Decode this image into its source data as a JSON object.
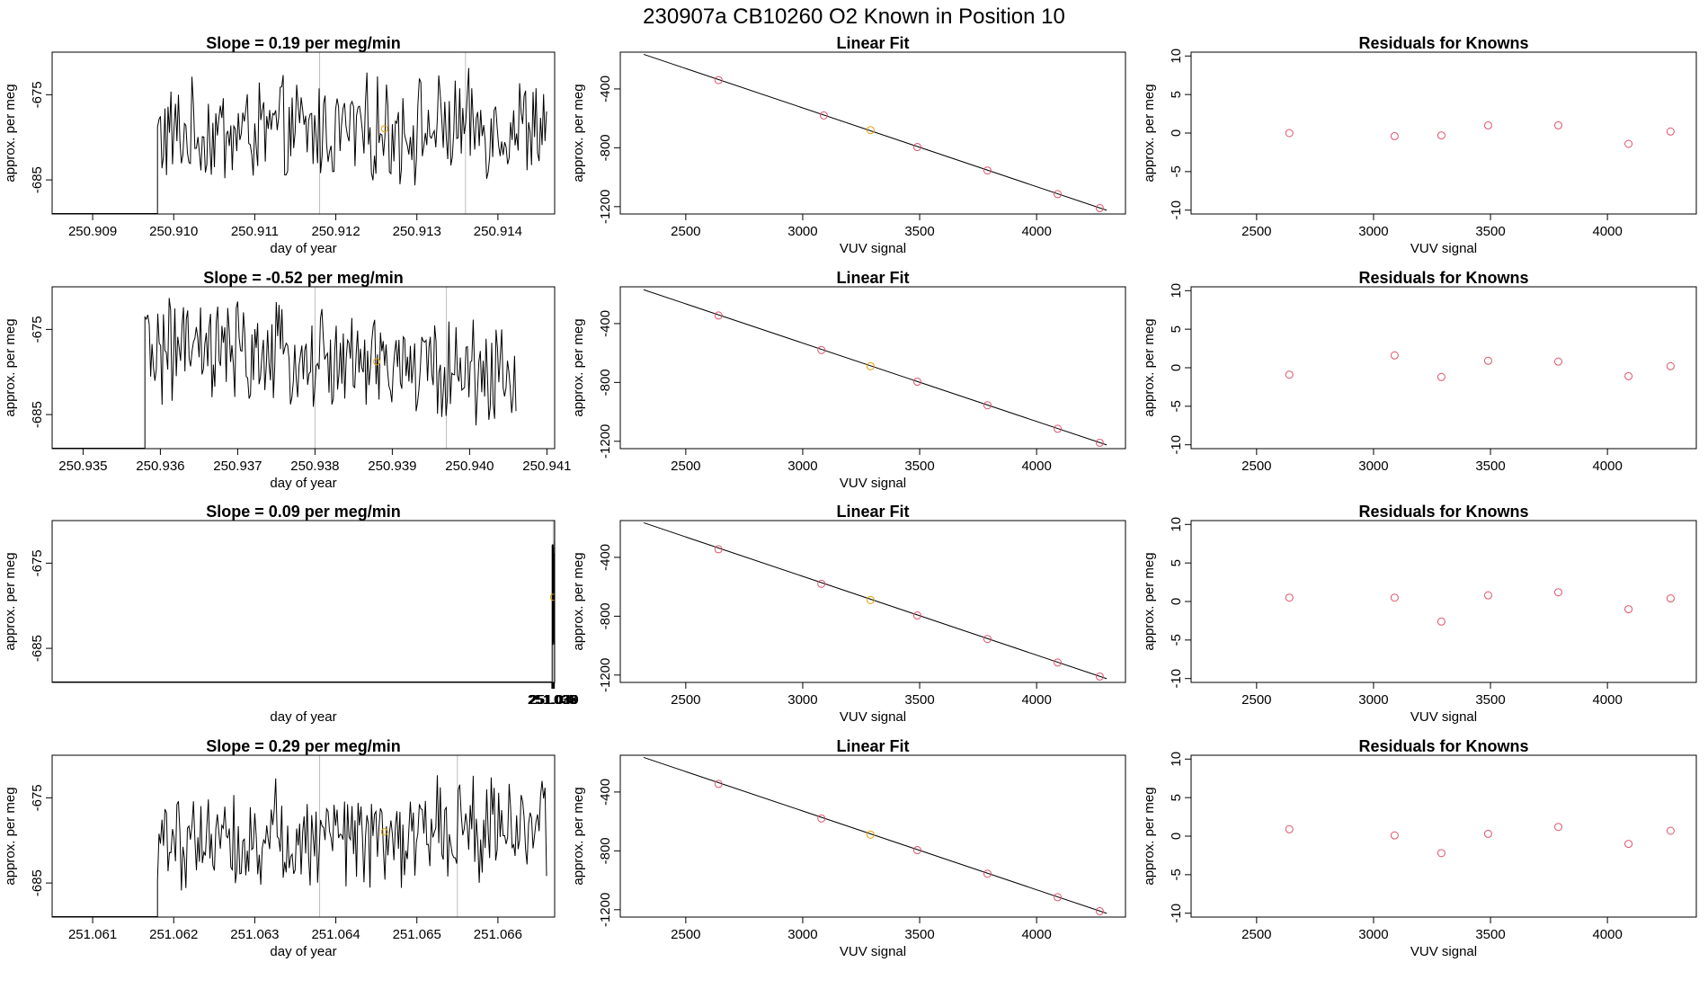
{
  "page_title": "230907a      CB10260    O2 Known in Position  10",
  "chart_data": [
    {
      "type": "line",
      "row": 0,
      "title": "Slope =  0.19  per meg/min",
      "xlabel": "day of year",
      "ylabel": "approx. per meg",
      "xlim": [
        250.9085,
        250.9147
      ],
      "ylim": [
        -689,
        -670
      ],
      "xticks": [
        250.909,
        250.91,
        250.911,
        250.912,
        250.913,
        250.914
      ],
      "xtick_labels": [
        "250.909",
        "250.910",
        "250.911",
        "250.912",
        "250.913",
        "250.914"
      ],
      "yticks": [
        -675,
        -685
      ],
      "ytick_labels": [
        "-675",
        "-685"
      ],
      "vlines": [
        250.9118,
        250.9136
      ],
      "signal_start": 250.9098,
      "signal_end": 250.9146,
      "signal_mean": -679.2,
      "signal_trend": 0.19,
      "marker": {
        "x": 250.9126,
        "y": -679.0,
        "color": "#e69f00"
      }
    },
    {
      "type": "scatter",
      "row": 0,
      "title": "Linear Fit",
      "xlabel": "VUV signal",
      "ylabel": "approx. per meg",
      "xlim": [
        2220,
        4380
      ],
      "ylim": [
        -1250,
        -150
      ],
      "xticks": [
        2500,
        3000,
        3500,
        4000
      ],
      "xtick_labels": [
        "2500",
        "3000",
        "3500",
        "4000"
      ],
      "yticks": [
        -400,
        -800,
        -1200
      ],
      "ytick_labels": [
        "-400",
        "-800",
        "-1200"
      ],
      "fit_line": {
        "x": [
          2320,
          4300
        ],
        "y": [
          -165,
          -1225
        ]
      },
      "points": [
        {
          "x": 2640,
          "y": -340,
          "color": "#df536b"
        },
        {
          "x": 3090,
          "y": -580,
          "color": "#df536b"
        },
        {
          "x": 3290,
          "y": -680,
          "color": "#e69f00"
        },
        {
          "x": 3490,
          "y": -795,
          "color": "#df536b"
        },
        {
          "x": 3790,
          "y": -955,
          "color": "#df536b"
        },
        {
          "x": 4090,
          "y": -1115,
          "color": "#df536b"
        },
        {
          "x": 4270,
          "y": -1210,
          "color": "#df536b"
        }
      ]
    },
    {
      "type": "scatter",
      "row": 0,
      "title": "Residuals for Knowns",
      "xlabel": "VUV signal",
      "ylabel": "approx. per meg",
      "xlim": [
        2220,
        4380
      ],
      "ylim": [
        -10.5,
        10.5
      ],
      "xticks": [
        2500,
        3000,
        3500,
        4000
      ],
      "xtick_labels": [
        "2500",
        "3000",
        "3500",
        "4000"
      ],
      "yticks": [
        10,
        5,
        0,
        -5,
        -10
      ],
      "ytick_labels": [
        "10",
        "5",
        "0",
        "-5",
        "-10"
      ],
      "points": [
        {
          "x": 2640,
          "y": 0.0
        },
        {
          "x": 3090,
          "y": -0.4
        },
        {
          "x": 3290,
          "y": -0.3
        },
        {
          "x": 3490,
          "y": 1.0
        },
        {
          "x": 3790,
          "y": 1.0
        },
        {
          "x": 4090,
          "y": -1.4
        },
        {
          "x": 4270,
          "y": 0.2
        }
      ]
    },
    {
      "type": "line",
      "row": 1,
      "title": "Slope =  -0.52  per meg/min",
      "xlabel": "day of year",
      "ylabel": "approx. per meg",
      "xlim": [
        250.9346,
        250.9411
      ],
      "ylim": [
        -689,
        -670
      ],
      "xticks": [
        250.935,
        250.936,
        250.937,
        250.938,
        250.939,
        250.94,
        250.941
      ],
      "xtick_labels": [
        "250.935",
        "250.936",
        "250.937",
        "250.938",
        "250.939",
        "250.940",
        "250.941"
      ],
      "yticks": [
        -675,
        -685
      ],
      "ytick_labels": [
        "-675",
        "-685"
      ],
      "vlines": [
        250.938,
        250.9397
      ],
      "signal_start": 250.9358,
      "signal_end": 250.9406,
      "signal_mean": -678.8,
      "signal_trend": -0.52,
      "marker": {
        "x": 250.9388,
        "y": -678.8,
        "color": "#e69f00"
      }
    },
    {
      "type": "scatter",
      "row": 1,
      "title": "Linear Fit",
      "xlabel": "VUV signal",
      "ylabel": "approx. per meg",
      "xlim": [
        2220,
        4380
      ],
      "ylim": [
        -1250,
        -150
      ],
      "xticks": [
        2500,
        3000,
        3500,
        4000
      ],
      "xtick_labels": [
        "2500",
        "3000",
        "3500",
        "4000"
      ],
      "yticks": [
        -400,
        -800,
        -1200
      ],
      "ytick_labels": [
        "-400",
        "-800",
        "-1200"
      ],
      "fit_line": {
        "x": [
          2320,
          4300
        ],
        "y": [
          -170,
          -1225
        ]
      },
      "points": [
        {
          "x": 2640,
          "y": -345,
          "color": "#df536b"
        },
        {
          "x": 3080,
          "y": -580,
          "color": "#df536b"
        },
        {
          "x": 3290,
          "y": -690,
          "color": "#e69f00"
        },
        {
          "x": 3490,
          "y": -795,
          "color": "#df536b"
        },
        {
          "x": 3790,
          "y": -955,
          "color": "#df536b"
        },
        {
          "x": 4090,
          "y": -1115,
          "color": "#df536b"
        },
        {
          "x": 4270,
          "y": -1210,
          "color": "#df536b"
        }
      ]
    },
    {
      "type": "scatter",
      "row": 1,
      "title": "Residuals for Knowns",
      "xlabel": "",
      "ylabel": "approx. per meg",
      "xlim": [
        2220,
        4380
      ],
      "ylim": [
        -10.5,
        10.5
      ],
      "xticks": [
        2500,
        3000,
        3500,
        4000
      ],
      "xtick_labels": [
        "2500",
        "3000",
        "3500",
        "4000"
      ],
      "yticks": [
        10,
        5,
        0,
        -5,
        -10
      ],
      "ytick_labels": [
        "10",
        "5",
        "0",
        "-5",
        "-10"
      ],
      "points": [
        {
          "x": 2640,
          "y": -0.9
        },
        {
          "x": 3090,
          "y": 1.6
        },
        {
          "x": 3290,
          "y": -1.2
        },
        {
          "x": 3490,
          "y": 0.9
        },
        {
          "x": 3790,
          "y": 0.8
        },
        {
          "x": 4090,
          "y": -1.1
        },
        {
          "x": 4270,
          "y": 0.2
        }
      ]
    },
    {
      "type": "line",
      "row": 2,
      "title": "Slope =  0.09  per meg/min",
      "xlabel": "day of year",
      "ylabel": "approx. per meg",
      "xlim": [
        250.0345,
        251.0406
      ],
      "ylim": [
        -689,
        -670
      ],
      "xticks": [
        251.035,
        251.036,
        251.037,
        251.038,
        251.039,
        251.04
      ],
      "xtick_labels": [
        "251.035",
        "251.036",
        "251.037",
        "251.038",
        "251.039",
        "251.040"
      ],
      "yticks": [
        -675,
        -685
      ],
      "ytick_labels": [
        "-675",
        "-685"
      ],
      "vlines": [
        251.0376,
        251.0394
      ],
      "signal_start": 251.0355,
      "signal_end": 251.0405,
      "signal_mean": -679.0,
      "signal_trend": 0.09,
      "marker": {
        "x": 251.0385,
        "y": -679.0,
        "color": "#e69f00"
      }
    },
    {
      "type": "scatter",
      "row": 2,
      "title": "Linear Fit",
      "xlabel": "VUV signal",
      "ylabel": "approx. per meg",
      "xlim": [
        2220,
        4380
      ],
      "ylim": [
        -1250,
        -150
      ],
      "xticks": [
        2500,
        3000,
        3500,
        4000
      ],
      "xtick_labels": [
        "2500",
        "3000",
        "3500",
        "4000"
      ],
      "yticks": [
        -400,
        -800,
        -1200
      ],
      "ytick_labels": [
        "-400",
        "-800",
        "-1200"
      ],
      "fit_line": {
        "x": [
          2320,
          4300
        ],
        "y": [
          -165,
          -1225
        ]
      },
      "points": [
        {
          "x": 2640,
          "y": -345,
          "color": "#df536b"
        },
        {
          "x": 3080,
          "y": -580,
          "color": "#df536b"
        },
        {
          "x": 3290,
          "y": -690,
          "color": "#e69f00"
        },
        {
          "x": 3490,
          "y": -795,
          "color": "#df536b"
        },
        {
          "x": 3790,
          "y": -955,
          "color": "#df536b"
        },
        {
          "x": 4090,
          "y": -1115,
          "color": "#df536b"
        },
        {
          "x": 4270,
          "y": -1210,
          "color": "#df536b"
        }
      ]
    },
    {
      "type": "scatter",
      "row": 2,
      "title": "Residuals for Knowns",
      "xlabel": "VUV signal",
      "ylabel": "approx. per meg",
      "xlim": [
        2220,
        4380
      ],
      "ylim": [
        -10.5,
        10.5
      ],
      "xticks": [
        2500,
        3000,
        3500,
        4000
      ],
      "xtick_labels": [
        "2500",
        "3000",
        "3500",
        "4000"
      ],
      "yticks": [
        10,
        5,
        0,
        -5,
        -10
      ],
      "ytick_labels": [
        "10",
        "5",
        "0",
        "-5",
        "-10"
      ],
      "points": [
        {
          "x": 2640,
          "y": 0.5
        },
        {
          "x": 3090,
          "y": 0.5
        },
        {
          "x": 3290,
          "y": -2.6
        },
        {
          "x": 3490,
          "y": 0.8
        },
        {
          "x": 3790,
          "y": 1.2
        },
        {
          "x": 4090,
          "y": -1.0
        },
        {
          "x": 4270,
          "y": 0.4
        }
      ]
    },
    {
      "type": "line",
      "row": 3,
      "title": "Slope =  0.29  per meg/min",
      "xlabel": "day of year",
      "ylabel": "approx. per meg",
      "xlim": [
        251.0605,
        251.0667
      ],
      "ylim": [
        -689,
        -670
      ],
      "xticks": [
        251.061,
        251.062,
        251.063,
        251.064,
        251.065,
        251.066
      ],
      "xtick_labels": [
        "251.061",
        "251.062",
        "251.063",
        "251.064",
        "251.065",
        "251.066"
      ],
      "yticks": [
        -675,
        -685
      ],
      "ytick_labels": [
        "-675",
        "-685"
      ],
      "vlines": [
        251.0638,
        251.0655
      ],
      "signal_start": 251.0618,
      "signal_end": 251.0666,
      "signal_mean": -679.0,
      "signal_trend": 0.29,
      "marker": {
        "x": 251.0646,
        "y": -679.0,
        "color": "#e69f00"
      }
    },
    {
      "type": "scatter",
      "row": 3,
      "title": "Linear Fit",
      "xlabel": "VUV signal",
      "ylabel": "approx. per meg",
      "xlim": [
        2220,
        4380
      ],
      "ylim": [
        -1250,
        -150
      ],
      "xticks": [
        2500,
        3000,
        3500,
        4000
      ],
      "xtick_labels": [
        "2500",
        "3000",
        "3500",
        "4000"
      ],
      "yticks": [
        -400,
        -800,
        -1200
      ],
      "ytick_labels": [
        "-400",
        "-800",
        "-1200"
      ],
      "fit_line": {
        "x": [
          2320,
          4300
        ],
        "y": [
          -165,
          -1225
        ]
      },
      "points": [
        {
          "x": 2640,
          "y": -345,
          "color": "#df536b"
        },
        {
          "x": 3080,
          "y": -580,
          "color": "#df536b"
        },
        {
          "x": 3290,
          "y": -690,
          "color": "#e69f00"
        },
        {
          "x": 3490,
          "y": -795,
          "color": "#df536b"
        },
        {
          "x": 3790,
          "y": -955,
          "color": "#df536b"
        },
        {
          "x": 4090,
          "y": -1115,
          "color": "#df536b"
        },
        {
          "x": 4270,
          "y": -1210,
          "color": "#df536b"
        }
      ]
    },
    {
      "type": "scatter",
      "row": 3,
      "title": "Residuals for Knowns",
      "xlabel": "VUV signal",
      "ylabel": "approx. per meg",
      "xlim": [
        2220,
        4380
      ],
      "ylim": [
        -10.5,
        10.5
      ],
      "xticks": [
        2500,
        3000,
        3500,
        4000
      ],
      "xtick_labels": [
        "2500",
        "3000",
        "3500",
        "4000"
      ],
      "yticks": [
        10,
        5,
        0,
        -5,
        -10
      ],
      "ytick_labels": [
        "10",
        "5",
        "0",
        "-5",
        "-10"
      ],
      "points": [
        {
          "x": 2640,
          "y": 0.9
        },
        {
          "x": 3090,
          "y": 0.1
        },
        {
          "x": 3290,
          "y": -2.2
        },
        {
          "x": 3490,
          "y": 0.3
        },
        {
          "x": 3790,
          "y": 1.2
        },
        {
          "x": 4090,
          "y": -1.0
        },
        {
          "x": 4270,
          "y": 0.7
        }
      ]
    }
  ],
  "colors": {
    "line": "#000000",
    "point_red": "#df536b",
    "point_orange": "#e69f00",
    "vline": "#bebebe"
  }
}
